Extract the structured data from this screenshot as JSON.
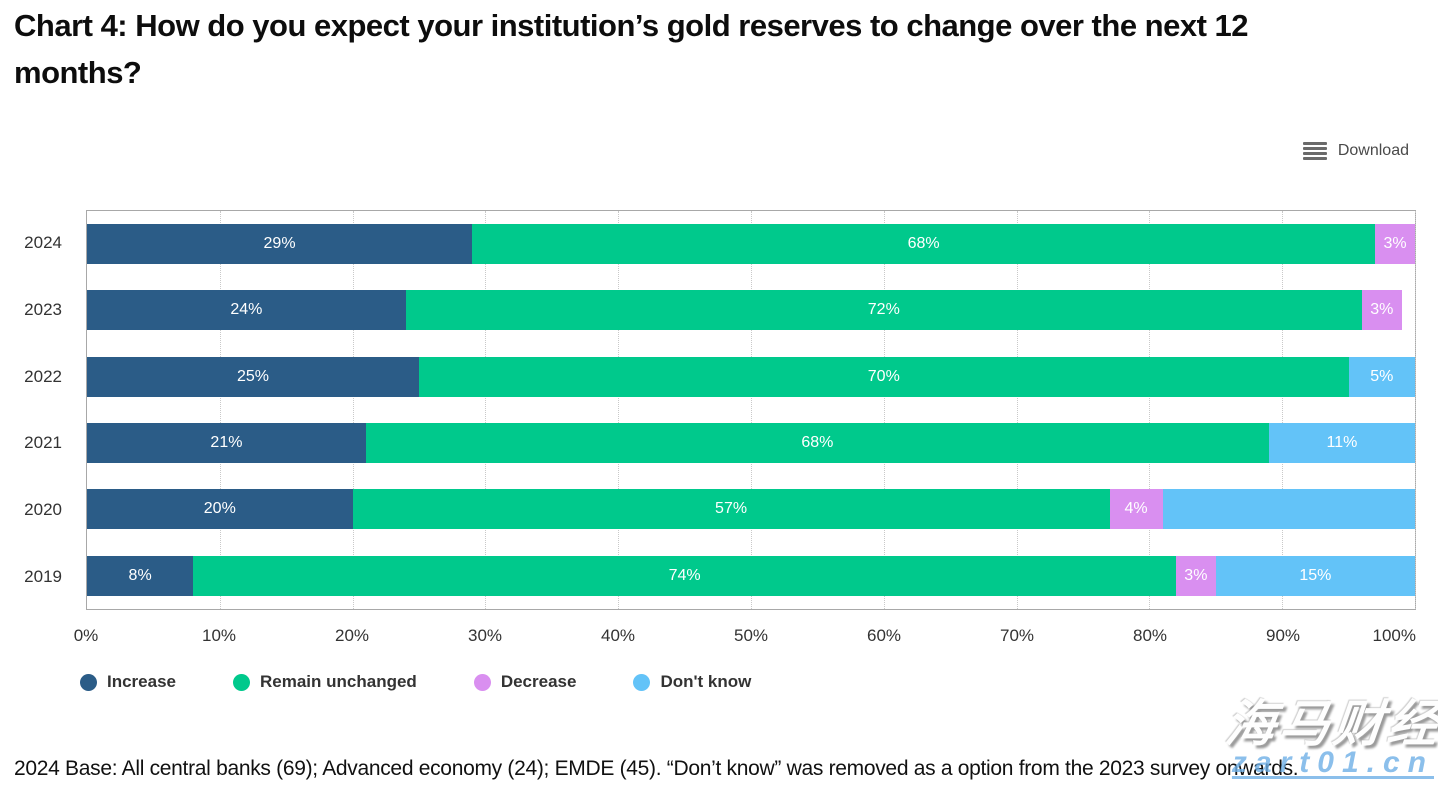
{
  "title": "Chart 4: How do you expect your institution’s gold reserves to change over the next 12 months?",
  "toolbar": {
    "download_label": "Download"
  },
  "chart_data": {
    "type": "bar",
    "orientation": "horizontal",
    "stacked": true,
    "grid": "vertical-dotted",
    "legend_position": "bottom",
    "xlim": [
      0,
      100
    ],
    "xticks": [
      "0%",
      "10%",
      "20%",
      "30%",
      "40%",
      "50%",
      "60%",
      "70%",
      "80%",
      "90%",
      "100%"
    ],
    "categories": [
      "2024",
      "2023",
      "2022",
      "2021",
      "2020",
      "2019"
    ],
    "series": [
      {
        "name": "Increase",
        "color": "#2b5c87",
        "values": [
          29,
          24,
          25,
          21,
          20,
          8
        ],
        "labels": [
          "29%",
          "24%",
          "25%",
          "21%",
          "20%",
          "8%"
        ]
      },
      {
        "name": "Remain unchanged",
        "color": "#00c98c",
        "values": [
          68,
          72,
          70,
          68,
          57,
          74
        ],
        "labels": [
          "68%",
          "72%",
          "70%",
          "68%",
          "57%",
          "74%"
        ]
      },
      {
        "name": "Decrease",
        "color": "#d98ff0",
        "values": [
          3,
          3,
          0,
          0,
          4,
          3
        ],
        "labels": [
          "3%",
          "3%",
          "",
          "",
          "4%",
          "3%"
        ]
      },
      {
        "name": "Don't know",
        "color": "#63c3f8",
        "values": [
          0,
          0,
          5,
          11,
          19,
          15
        ],
        "labels": [
          "",
          "",
          "5%",
          "11%",
          "",
          "15%"
        ]
      }
    ],
    "colors": {
      "grid": "#c9c9c9",
      "plot_border": "#a8a8a8",
      "bar_label_text": "#ffffff"
    }
  },
  "footer": {
    "text": "2024 Base: All central banks (69); Advanced economy (24); EMDE (45). “Don’t know” was removed as a option from the 2023 survey onwards."
  },
  "watermark": {
    "brand": "海马财经",
    "domain": "zart01.cn"
  }
}
